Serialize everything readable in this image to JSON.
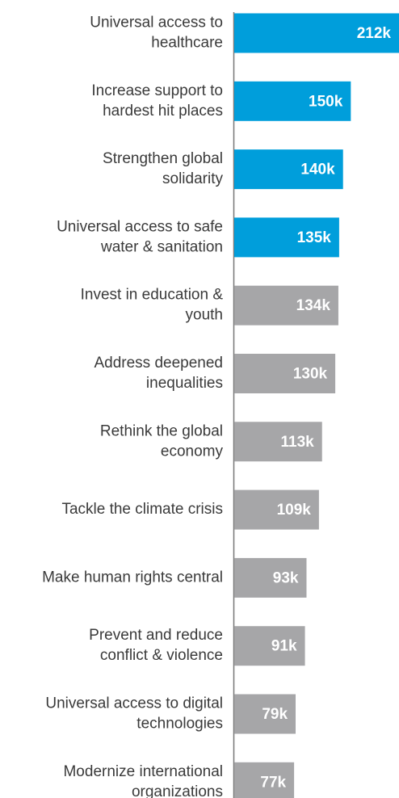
{
  "chart_data": {
    "type": "barh",
    "categories": [
      [
        "Universal access to",
        "healthcare"
      ],
      [
        "Increase support to",
        "hardest hit places"
      ],
      [
        "Strengthen global",
        "solidarity"
      ],
      [
        "Universal access to safe",
        "water & sanitation"
      ],
      [
        "Invest in education &",
        "youth"
      ],
      [
        "Address deepened",
        "inequalities"
      ],
      [
        "Rethink the global",
        "economy"
      ],
      [
        "Tackle the climate crisis"
      ],
      [
        "Make human rights central"
      ],
      [
        "Prevent and reduce",
        "conflict & violence"
      ],
      [
        "Universal access to digital",
        "technologies"
      ],
      [
        "Modernize international",
        "organizations"
      ]
    ],
    "values": [
      212000,
      150000,
      140000,
      135000,
      134000,
      130000,
      113000,
      109000,
      93000,
      91000,
      79000,
      77000
    ],
    "value_labels": [
      "212k",
      "150k",
      "140k",
      "135k",
      "134k",
      "130k",
      "113k",
      "109k",
      "93k",
      "91k",
      "79k",
      "77k"
    ],
    "colors": [
      "#009edb",
      "#009edb",
      "#009edb",
      "#009edb",
      "#a6a6a8",
      "#a6a6a8",
      "#a6a6a8",
      "#a6a6a8",
      "#a6a6a8",
      "#a6a6a8",
      "#a6a6a8",
      "#a6a6a8"
    ]
  }
}
